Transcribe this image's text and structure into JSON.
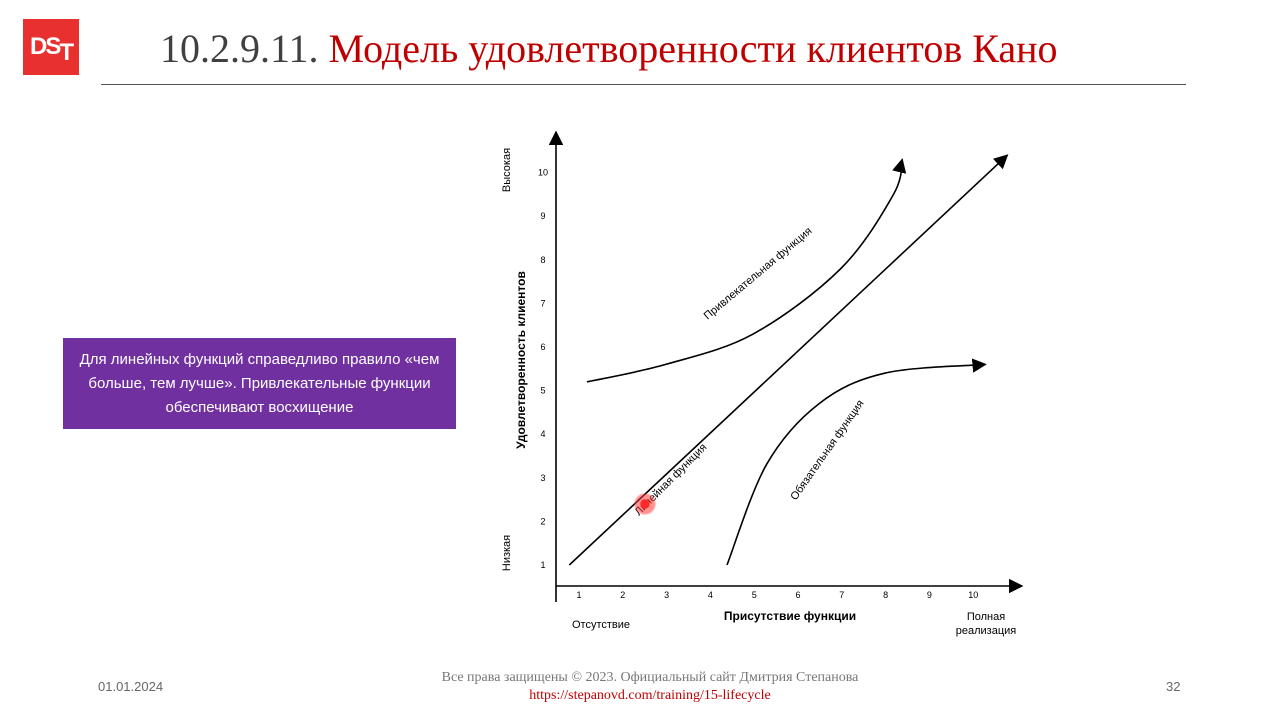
{
  "logo": {
    "text_d": "D",
    "text_s": "S",
    "text_t": "T"
  },
  "header": {
    "number": "10.2.9.11.",
    "title": "Модель удовлетворенности клиентов Кано"
  },
  "callout": {
    "text": "Для линейных функций справедливо правило «чем больше, тем лучше». Привлекательные функции обеспечивают восхищение"
  },
  "chart_data": {
    "type": "line",
    "xlabel": "Присутствие функции",
    "ylabel": "Удовлетворенность клиентов",
    "x_ticks": [
      "1",
      "2",
      "3",
      "4",
      "5",
      "6",
      "7",
      "8",
      "9",
      "10"
    ],
    "y_ticks": [
      "1",
      "2",
      "3",
      "4",
      "5",
      "6",
      "7",
      "8",
      "9",
      "10"
    ],
    "x_left_label": "Отсутствие",
    "x_right_label_1": "Полная",
    "x_right_label_2": "реализация",
    "y_low_label": "Низкая",
    "y_high_label": "Высокая",
    "xlim": [
      0,
      11
    ],
    "ylim": [
      0,
      11
    ],
    "grid": false,
    "series": [
      {
        "name": "Привлекательная функция",
        "x": [
          0.7,
          2.5,
          4.5,
          6.5,
          7.7,
          7.9
        ],
        "y": [
          5.2,
          5.6,
          6.3,
          7.8,
          9.5,
          10.3
        ]
      },
      {
        "name": "Линейная функция",
        "x": [
          0.3,
          10.3
        ],
        "y": [
          1,
          10.4
        ]
      },
      {
        "name": "Обязательная функция",
        "x": [
          3.9,
          4.8,
          6.0,
          7.5,
          9.8
        ],
        "y": [
          1,
          3.3,
          4.7,
          5.4,
          5.6
        ]
      }
    ]
  },
  "footer": {
    "date": "01.01.2024",
    "copyright": "Все права защищены © 2023. Официальный сайт Дмитрия Степанова",
    "link": "https://stepanovd.com/training/15-lifecycle",
    "page": "32"
  }
}
